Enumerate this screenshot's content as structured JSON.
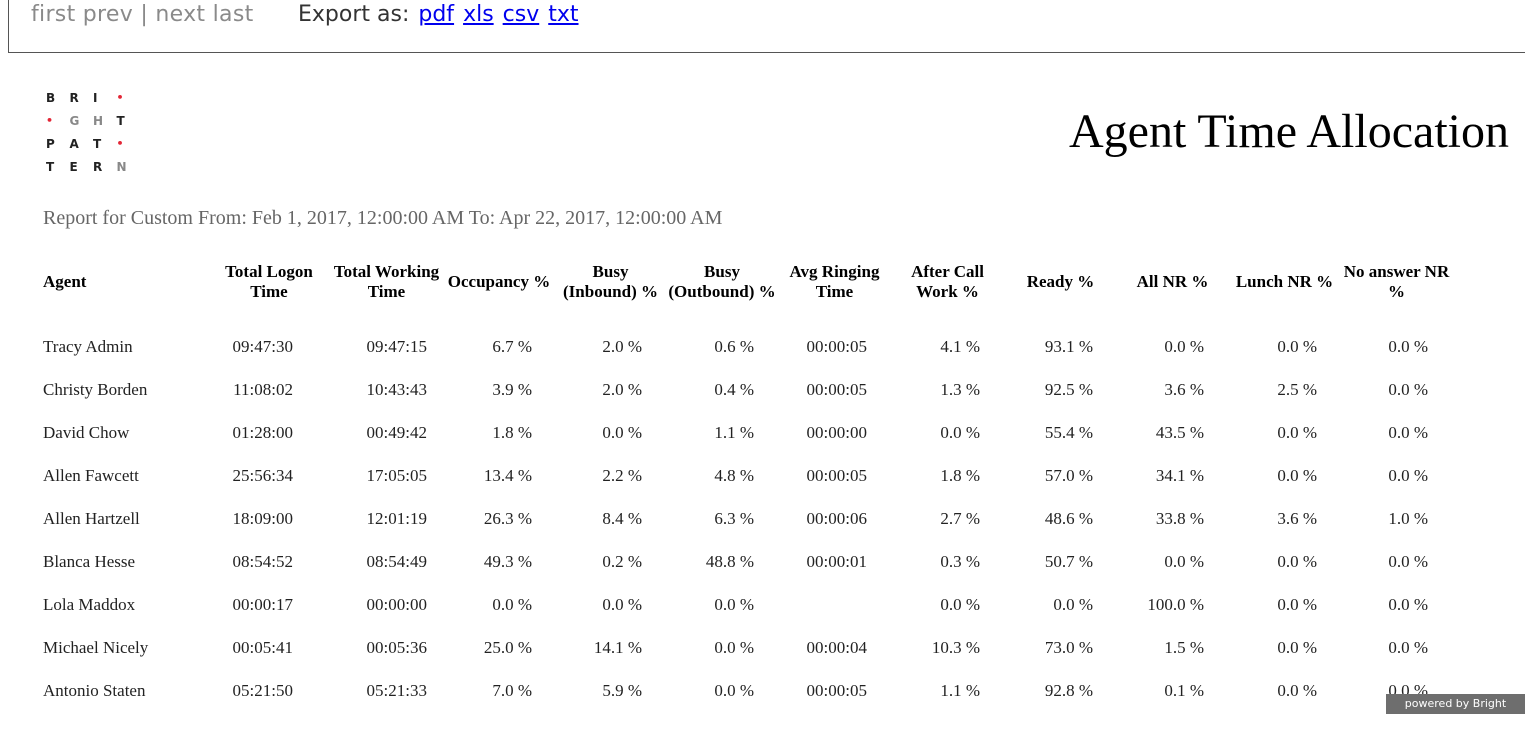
{
  "nav": {
    "first": "first",
    "prev": "prev",
    "separator": "|",
    "next": "next",
    "last": "last"
  },
  "export": {
    "label": "Export as:",
    "formats": [
      "pdf",
      "xls",
      "csv",
      "txt"
    ]
  },
  "logo": {
    "letters": [
      "B",
      "R",
      "I",
      "•",
      "•",
      "G",
      "H",
      "T",
      "P",
      "A",
      "T",
      "•",
      "T",
      "E",
      "R",
      "N"
    ]
  },
  "report": {
    "title": "Agent Time Allocation",
    "subtitle": "Report for Custom From: Feb 1, 2017, 12:00:00 AM To: Apr 22, 2017, 12:00:00 AM",
    "columns": [
      "Agent",
      "Total Logon Time",
      "Total Working Time",
      "Occupancy %",
      "Busy (Inbound) %",
      "Busy (Outbound) %",
      "Avg Ringing Time",
      "After Call Work %",
      "Ready %",
      "All NR %",
      "Lunch NR %",
      "No answer NR %"
    ],
    "rows": [
      [
        "Tracy Admin",
        "09:47:30",
        "09:47:15",
        "6.7 %",
        "2.0 %",
        "0.6 %",
        "00:00:05",
        "4.1 %",
        "93.1 %",
        "0.0 %",
        "0.0 %",
        "0.0 %"
      ],
      [
        "Christy Borden",
        "11:08:02",
        "10:43:43",
        "3.9 %",
        "2.0 %",
        "0.4 %",
        "00:00:05",
        "1.3 %",
        "92.5 %",
        "3.6 %",
        "2.5 %",
        "0.0 %"
      ],
      [
        "David Chow",
        "01:28:00",
        "00:49:42",
        "1.8 %",
        "0.0 %",
        "1.1 %",
        "00:00:00",
        "0.0 %",
        "55.4 %",
        "43.5 %",
        "0.0 %",
        "0.0 %"
      ],
      [
        "Allen Fawcett",
        "25:56:34",
        "17:05:05",
        "13.4 %",
        "2.2 %",
        "4.8 %",
        "00:00:05",
        "1.8 %",
        "57.0 %",
        "34.1 %",
        "0.0 %",
        "0.0 %"
      ],
      [
        "Allen Hartzell",
        "18:09:00",
        "12:01:19",
        "26.3 %",
        "8.4 %",
        "6.3 %",
        "00:00:06",
        "2.7 %",
        "48.6 %",
        "33.8 %",
        "3.6 %",
        "1.0 %"
      ],
      [
        "Blanca Hesse",
        "08:54:52",
        "08:54:49",
        "49.3 %",
        "0.2 %",
        "48.8 %",
        "00:00:01",
        "0.3 %",
        "50.7 %",
        "0.0 %",
        "0.0 %",
        "0.0 %"
      ],
      [
        "Lola Maddox",
        "00:00:17",
        "00:00:00",
        "0.0 %",
        "0.0 %",
        "0.0 %",
        "",
        "0.0 %",
        "0.0 %",
        "100.0 %",
        "0.0 %",
        "0.0 %"
      ],
      [
        "Michael Nicely",
        "00:05:41",
        "00:05:36",
        "25.0 %",
        "14.1 %",
        "0.0 %",
        "00:00:04",
        "10.3 %",
        "73.0 %",
        "1.5 %",
        "0.0 %",
        "0.0 %"
      ],
      [
        "Antonio Staten",
        "05:21:50",
        "05:21:33",
        "7.0 %",
        "5.9 %",
        "0.0 %",
        "00:00:05",
        "1.1 %",
        "92.8 %",
        "0.1 %",
        "0.0 %",
        "0.0 %"
      ]
    ]
  },
  "footer": {
    "powered": "powered by Bright Pattern"
  }
}
